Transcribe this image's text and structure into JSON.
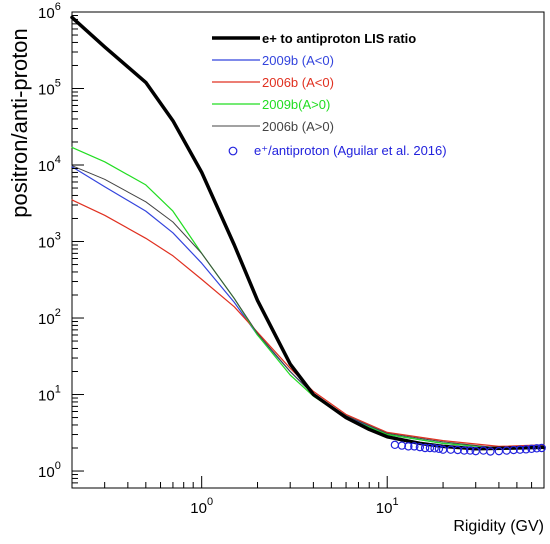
{
  "chart_data": {
    "type": "line",
    "xlabel": "Rigidity (GV)",
    "ylabel": "positron/anti-proton",
    "x_scale": "log",
    "y_scale": "log",
    "xlim": [
      0.2,
      70
    ],
    "ylim": [
      0.6,
      1000000
    ],
    "grid": false,
    "legend_position": "top-right",
    "x_ticks": [
      {
        "value": 1,
        "base": "10",
        "exp": "0"
      },
      {
        "value": 10,
        "base": "10",
        "exp": "1"
      }
    ],
    "y_ticks": [
      {
        "value": 1,
        "base": "10",
        "exp": "0"
      },
      {
        "value": 10,
        "base": "10",
        "exp": "1"
      },
      {
        "value": 100,
        "base": "10",
        "exp": "2"
      },
      {
        "value": 1000,
        "base": "10",
        "exp": "3"
      },
      {
        "value": 10000,
        "base": "10",
        "exp": "4"
      },
      {
        "value": 100000,
        "base": "10",
        "exp": "5"
      },
      {
        "value": 1000000,
        "base": "10",
        "exp": "6"
      }
    ],
    "series": [
      {
        "name": "e+ to antiproton LIS ratio",
        "color": "#000000",
        "width": 3.5,
        "marker": "none",
        "x": [
          0.2,
          0.3,
          0.5,
          0.7,
          1.0,
          1.5,
          2.0,
          3.0,
          4.0,
          6.0,
          8.0,
          10,
          15,
          20,
          30,
          50,
          70
        ],
        "y": [
          850000,
          350000,
          120000,
          38000,
          8000,
          900,
          170,
          25,
          10,
          5,
          3.5,
          2.8,
          2.3,
          2.1,
          1.95,
          2.0,
          2.05
        ]
      },
      {
        "name": "2009b (A<0)",
        "color": "#3344dd",
        "width": 1.2,
        "marker": "none",
        "x": [
          0.2,
          0.3,
          0.5,
          0.7,
          1.0,
          1.5,
          2.0,
          3.0,
          4.0,
          6.0,
          10,
          20,
          40,
          70
        ],
        "y": [
          9500,
          5200,
          2500,
          1300,
          520,
          160,
          60,
          20,
          10,
          5.2,
          3.0,
          2.3,
          2.0,
          2.1
        ]
      },
      {
        "name": "2006b (A<0)",
        "color": "#e03020",
        "width": 1.2,
        "marker": "none",
        "x": [
          0.2,
          0.3,
          0.5,
          0.7,
          1.0,
          1.5,
          2.0,
          3.0,
          4.0,
          6.0,
          10,
          20,
          40,
          70
        ],
        "y": [
          3500,
          2200,
          1100,
          650,
          320,
          140,
          65,
          22,
          11,
          5.5,
          3.2,
          2.5,
          2.1,
          2.2
        ]
      },
      {
        "name": "2009b(A>0)",
        "color": "#22dd22",
        "width": 1.2,
        "marker": "none",
        "x": [
          0.2,
          0.3,
          0.5,
          0.7,
          1.0,
          1.5,
          2.0,
          3.0,
          4.0,
          6.0,
          10,
          20,
          40,
          70
        ],
        "y": [
          17000,
          11000,
          5500,
          2500,
          700,
          180,
          60,
          18,
          9.5,
          5.0,
          3.0,
          2.3,
          2.0,
          2.1
        ]
      },
      {
        "name": "2006b (A>0)",
        "color": "#444444",
        "width": 1.0,
        "marker": "none",
        "x": [
          0.2,
          0.3,
          0.5,
          0.7,
          1.0,
          1.5,
          2.0,
          3.0,
          4.0,
          6.0,
          10,
          20,
          40,
          70
        ],
        "y": [
          9800,
          6500,
          3300,
          1800,
          700,
          180,
          63,
          20,
          10,
          5.3,
          3.1,
          2.4,
          2.0,
          2.1
        ]
      },
      {
        "name": "e⁺/antiproton (Aguilar et al. 2016)",
        "color": "#2222dd",
        "width": 0,
        "marker": "open-circle",
        "x": [
          11,
          12,
          13,
          14,
          15,
          16,
          17,
          18,
          19,
          20,
          22,
          24,
          26,
          28,
          30,
          33,
          36,
          40,
          44,
          48,
          52,
          56,
          60,
          64,
          68
        ],
        "y": [
          2.2,
          2.15,
          2.1,
          2.1,
          2.05,
          2.0,
          2.0,
          1.98,
          1.95,
          1.9,
          1.9,
          1.88,
          1.85,
          1.85,
          1.82,
          1.85,
          1.8,
          1.82,
          1.85,
          1.88,
          1.9,
          1.92,
          1.95,
          1.98,
          2.0
        ]
      }
    ]
  }
}
